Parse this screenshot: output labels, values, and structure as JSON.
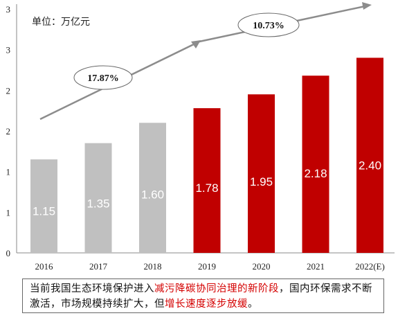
{
  "unit_label": "单位：万亿元",
  "chart_data": {
    "type": "bar",
    "categories": [
      "2016",
      "2017",
      "2018",
      "2019",
      "2020",
      "2021",
      "2022(E)"
    ],
    "values": [
      1.15,
      1.35,
      1.6,
      1.78,
      1.95,
      2.18,
      2.4
    ],
    "value_labels": [
      "1.15",
      "1.35",
      "1.60",
      "1.78",
      "1.95",
      "2.18",
      "2.40"
    ],
    "y_tick_labels": [
      "0",
      "1",
      "1",
      "2",
      "2",
      "3",
      "3"
    ],
    "ylim": [
      0,
      3.0
    ],
    "colors": {
      "grey": "#c0c0c0",
      "red": "#c00000",
      "arrow": "#8c8c8c"
    },
    "bar_color_keys": [
      "grey",
      "grey",
      "grey",
      "red",
      "red",
      "red",
      "red"
    ],
    "annotations": [
      "17.87%",
      "10.73%"
    ]
  },
  "caption": {
    "part1": "当前我国生态环境保护进入",
    "highlight1": "减污降碳协同治理的新阶段",
    "part2": "，国内环保需求不断激活，市场规模持续扩大，但",
    "highlight2": "增长速度逐步放缓",
    "part3": "。"
  }
}
